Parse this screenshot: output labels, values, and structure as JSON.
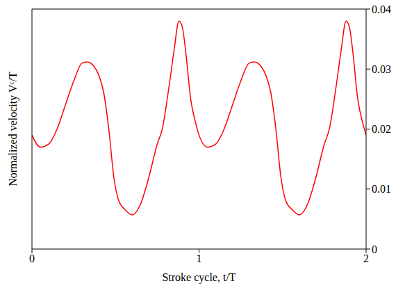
{
  "chart_data": {
    "type": "line",
    "x_label": "Stroke cycle, t/T",
    "y_label": "Normalized velocity Vᶜ/T",
    "color": "#ff0000",
    "x": [
      0,
      0.05,
      0.1,
      0.15,
      0.2,
      0.25,
      0.3,
      0.33,
      0.37,
      0.4,
      0.43,
      0.46,
      0.49,
      0.52,
      0.56,
      0.6,
      0.65,
      0.7,
      0.75,
      0.78,
      0.82,
      0.85,
      0.88,
      0.9,
      0.92,
      0.95,
      0.98,
      1.0,
      1.05,
      1.1,
      1.15,
      1.2,
      1.25,
      1.3,
      1.33,
      1.37,
      1.4,
      1.43,
      1.46,
      1.49,
      1.52,
      1.56,
      1.6,
      1.65,
      1.7,
      1.75,
      1.78,
      1.82,
      1.85,
      1.88,
      1.9,
      1.92,
      1.95,
      1.98,
      2.0
    ],
    "values": [
      0.019,
      0.017,
      0.0175,
      0.02,
      0.024,
      0.028,
      0.031,
      0.0312,
      0.0305,
      0.029,
      0.026,
      0.02,
      0.012,
      0.008,
      0.0065,
      0.0057,
      0.0075,
      0.012,
      0.0175,
      0.02,
      0.027,
      0.033,
      0.038,
      0.037,
      0.033,
      0.025,
      0.021,
      0.019,
      0.017,
      0.0175,
      0.02,
      0.024,
      0.028,
      0.031,
      0.0312,
      0.0305,
      0.029,
      0.026,
      0.02,
      0.012,
      0.008,
      0.0065,
      0.0057,
      0.0075,
      0.012,
      0.0175,
      0.02,
      0.027,
      0.033,
      0.038,
      0.037,
      0.033,
      0.025,
      0.021,
      0.019
    ],
    "xlim": [
      0,
      2
    ],
    "xticks": [
      0,
      1,
      2
    ],
    "ylim": [
      0,
      0.04
    ],
    "yticks": [
      0,
      0.01,
      0.02,
      0.03,
      0.04
    ],
    "grid": false
  }
}
